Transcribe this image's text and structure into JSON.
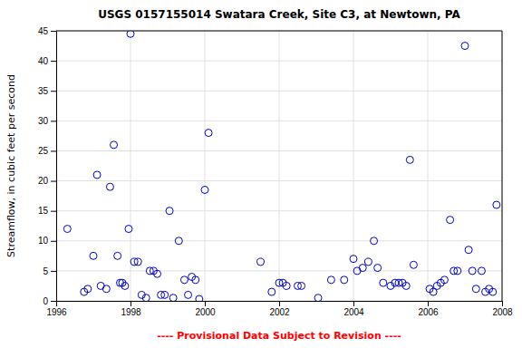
{
  "chart_data": {
    "type": "scatter",
    "title": "USGS 0157155014 Swatara Creek, Site C3, at Newtown, PA",
    "y_label": "Streamflow, in cubic feet per second",
    "annotation": "---- Provisional Data Subject to Revision ----",
    "color": "#0000CC",
    "marker": "circle",
    "grid": true,
    "xlim": [
      1996,
      2008
    ],
    "ylim": [
      0,
      45
    ],
    "xticks": [
      1996,
      1998,
      2000,
      2002,
      2004,
      2006,
      2008
    ],
    "yticks": [
      0,
      5,
      10,
      15,
      20,
      25,
      30,
      35,
      40,
      45
    ],
    "x": [
      1996.3,
      1996.75,
      1996.85,
      1997.0,
      1997.1,
      1997.2,
      1997.35,
      1997.45,
      1997.55,
      1997.65,
      1997.72,
      1997.78,
      1997.85,
      1997.95,
      1998.0,
      1998.1,
      1998.2,
      1998.3,
      1998.42,
      1998.52,
      1998.62,
      1998.72,
      1998.82,
      1998.92,
      1999.05,
      1999.15,
      1999.3,
      1999.45,
      1999.55,
      1999.65,
      1999.75,
      1999.85,
      2000.0,
      2000.1,
      2001.5,
      2001.8,
      2002.0,
      2002.1,
      2002.2,
      2002.5,
      2002.6,
      2003.05,
      2003.4,
      2003.75,
      2004.0,
      2004.1,
      2004.25,
      2004.4,
      2004.55,
      2004.65,
      2004.8,
      2005.0,
      2005.12,
      2005.22,
      2005.32,
      2005.42,
      2005.52,
      2005.62,
      2006.05,
      2006.15,
      2006.25,
      2006.35,
      2006.45,
      2006.6,
      2006.7,
      2006.8,
      2007.0,
      2007.1,
      2007.2,
      2007.3,
      2007.45,
      2007.55,
      2007.65,
      2007.75,
      2007.85
    ],
    "values": [
      12.0,
      1.5,
      2.0,
      7.5,
      21.0,
      2.5,
      2.0,
      19.0,
      26.0,
      7.5,
      3.0,
      3.0,
      2.5,
      12.0,
      44.5,
      6.5,
      6.5,
      1.0,
      0.5,
      5.0,
      5.0,
      4.5,
      1.0,
      1.0,
      15.0,
      0.5,
      10.0,
      3.5,
      1.0,
      4.0,
      3.5,
      0.3,
      18.5,
      28.0,
      6.5,
      1.5,
      3.0,
      3.0,
      2.5,
      2.5,
      2.5,
      0.5,
      3.5,
      3.5,
      7.0,
      5.0,
      5.5,
      6.5,
      10.0,
      5.5,
      3.0,
      2.5,
      3.0,
      3.0,
      3.0,
      2.5,
      23.5,
      6.0,
      2.0,
      1.5,
      2.5,
      3.0,
      3.5,
      13.5,
      5.0,
      5.0,
      42.5,
      8.5,
      5.0,
      2.0,
      5.0,
      1.5,
      2.0,
      1.5,
      16.0
    ]
  }
}
